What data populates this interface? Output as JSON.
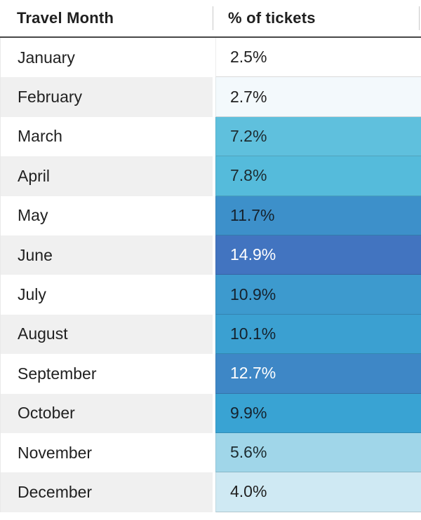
{
  "header": {
    "month_col": "Travel Month",
    "value_col": "% of tickets"
  },
  "rows": [
    {
      "month": "January",
      "value": "2.5%",
      "cell_bg": "#ffffff",
      "text_color": "#212121"
    },
    {
      "month": "February",
      "value": "2.7%",
      "cell_bg": "#f3f9fc",
      "text_color": "#212121"
    },
    {
      "month": "March",
      "value": "7.2%",
      "cell_bg": "#5fc0dd",
      "text_color": "#1d2b30"
    },
    {
      "month": "April",
      "value": "7.8%",
      "cell_bg": "#55bbdb",
      "text_color": "#1d2b30"
    },
    {
      "month": "May",
      "value": "11.7%",
      "cell_bg": "#3d90ca",
      "text_color": "#15222e"
    },
    {
      "month": "June",
      "value": "14.9%",
      "cell_bg": "#4274c0",
      "text_color": "#ffffff"
    },
    {
      "month": "July",
      "value": "10.9%",
      "cell_bg": "#3d9ace",
      "text_color": "#15222e"
    },
    {
      "month": "August",
      "value": "10.1%",
      "cell_bg": "#3ba0d1",
      "text_color": "#15222e"
    },
    {
      "month": "September",
      "value": "12.7%",
      "cell_bg": "#3e87c6",
      "text_color": "#ffffff"
    },
    {
      "month": "October",
      "value": "9.9%",
      "cell_bg": "#39a3d3",
      "text_color": "#15222e"
    },
    {
      "month": "November",
      "value": "5.6%",
      "cell_bg": "#a0d6e9",
      "text_color": "#1d2b30"
    },
    {
      "month": "December",
      "value": "4.0%",
      "cell_bg": "#cfe9f3",
      "text_color": "#212121"
    }
  ],
  "chart_data": {
    "type": "table",
    "title": "",
    "columns": [
      "Travel Month",
      "% of tickets"
    ],
    "categories": [
      "January",
      "February",
      "March",
      "April",
      "May",
      "June",
      "July",
      "August",
      "September",
      "October",
      "November",
      "December"
    ],
    "values": [
      2.5,
      2.7,
      7.2,
      7.8,
      11.7,
      14.9,
      10.9,
      10.1,
      12.7,
      9.9,
      5.6,
      4.0
    ],
    "value_format": "percent",
    "heatmap": true,
    "heatmap_scale": [
      "#ffffff",
      "#4274c0"
    ],
    "legend": "none",
    "grid": "off"
  }
}
